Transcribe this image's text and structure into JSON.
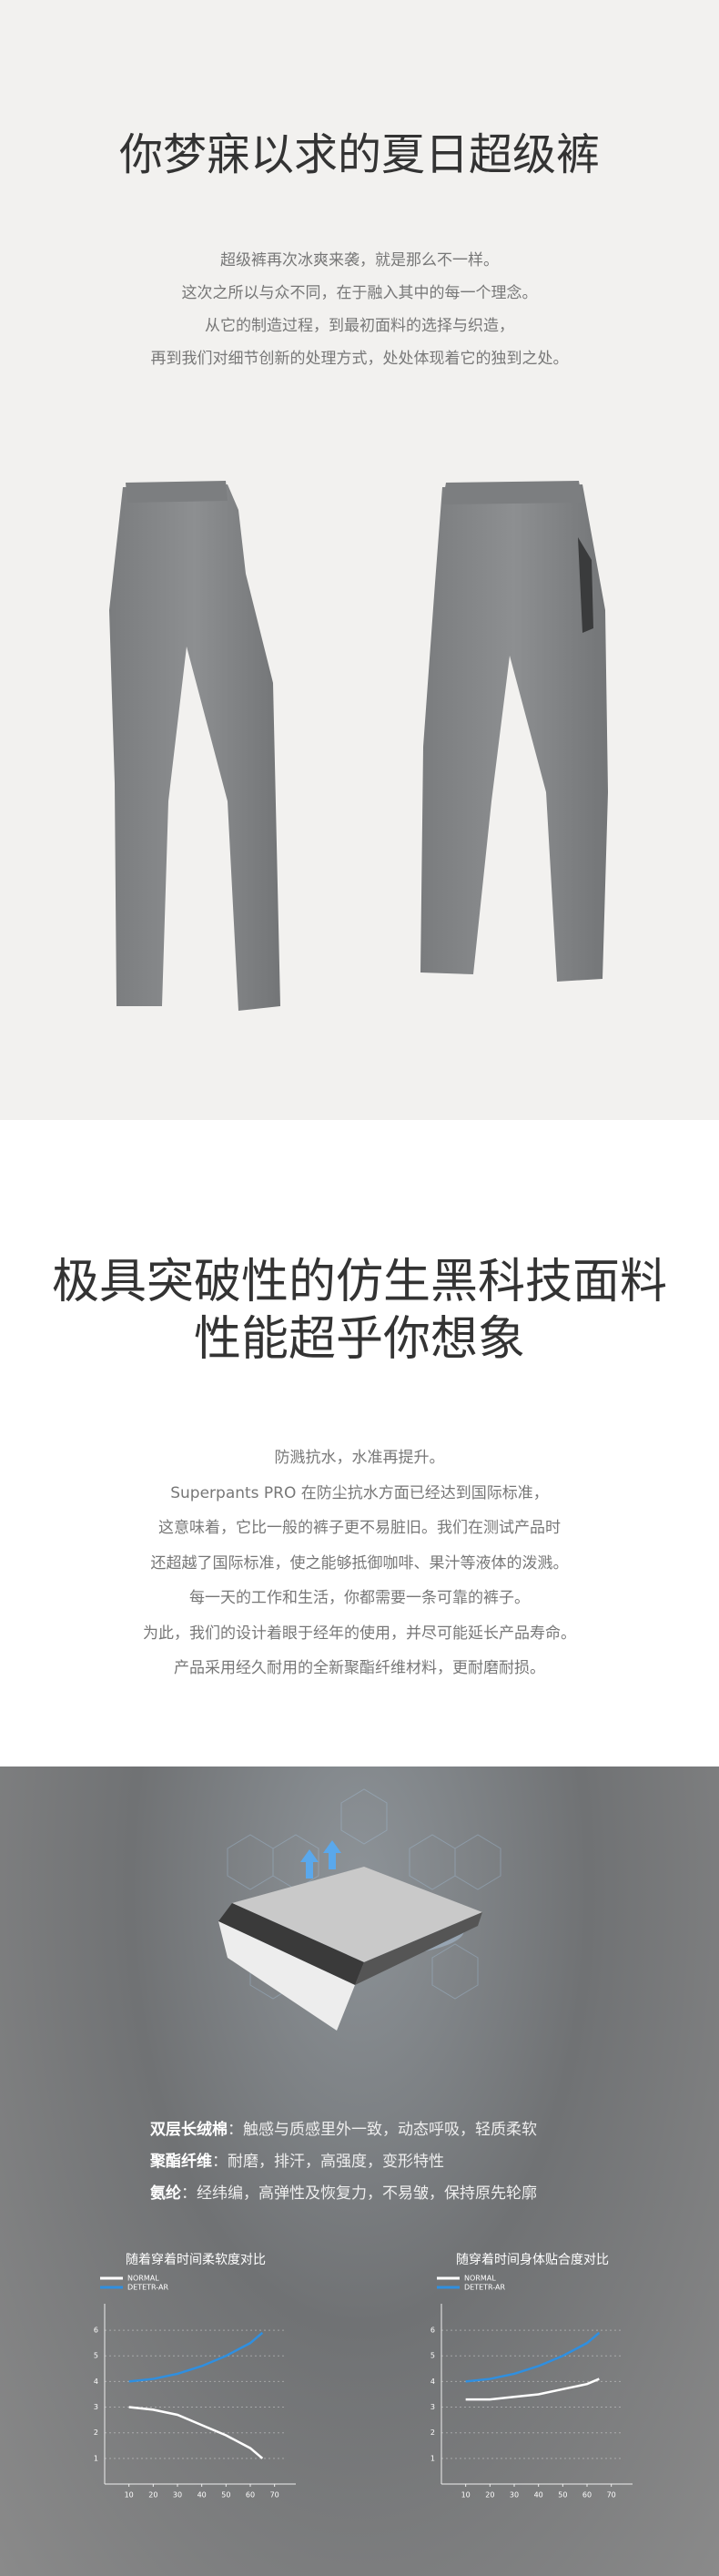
{
  "hero": {
    "title": "你梦寐以求的夏日超级裤",
    "lines": [
      "超级裤再次冰爽来袭，就是那么不一样。",
      "这次之所以与众不同，在于融入其中的每一个理念。",
      "从它的制造过程，到最初面料的选择与织造，",
      "再到我们对细节创新的处理方式，处处体现着它的独到之处。"
    ]
  },
  "fabric": {
    "title": [
      "极具突破性的仿生黑科技面料",
      "性能超乎你想象"
    ],
    "lines": [
      "防溅抗水，水准再提升。",
      "Superpants PRO 在防尘抗水方面已经达到国际标准，",
      "这意味着，它比一般的裤子更不易脏旧。我们在测试产品时",
      "还超越了国际标准，使之能够抵御咖啡、果汁等液体的泼溅。",
      "每一天的工作和生活，你都需要一条可靠的裤子。",
      "为此，我们的设计着眼于经年的使用，并尽可能延长产品寿命。",
      "产品采用经久耐用的全新聚酯纤维材料，更耐磨耐损。"
    ]
  },
  "features": [
    {
      "name": "双层长绒棉",
      "text": "：触感与质感里外一致，动态呼吸，轻质柔软"
    },
    {
      "name": "聚酯纤维",
      "text": "：耐磨，排汗，高强度，变形特性"
    },
    {
      "name": "氨纶",
      "text": "：经纬编，高弹性及恢复力，不易皱，保持原先轮廓"
    }
  ],
  "chart_data": [
    {
      "type": "line",
      "title": "随着穿着时间柔软度对比",
      "x": [
        10,
        20,
        30,
        40,
        50,
        60,
        65
      ],
      "series": [
        {
          "name": "NORMAL",
          "color": "#ffffff",
          "values": [
            3.0,
            2.9,
            2.7,
            2.3,
            1.9,
            1.4,
            1.0
          ]
        },
        {
          "name": "DETETR-AR",
          "color": "#2f8fe0",
          "values": [
            4.0,
            4.1,
            4.3,
            4.6,
            5.0,
            5.5,
            5.9
          ]
        }
      ],
      "xlim": [
        0,
        75
      ],
      "ylim": [
        0,
        6.5
      ],
      "xticks": [
        10,
        20,
        30,
        40,
        50,
        60,
        70
      ],
      "yticks": [
        1,
        2,
        3,
        4,
        5,
        6
      ]
    },
    {
      "type": "line",
      "title": "随穿着时间身体贴合度对比",
      "x": [
        10,
        20,
        30,
        40,
        50,
        60,
        65
      ],
      "series": [
        {
          "name": "NORMAL",
          "color": "#ffffff",
          "values": [
            3.3,
            3.3,
            3.4,
            3.5,
            3.7,
            3.9,
            4.1
          ]
        },
        {
          "name": "DETETR-AR",
          "color": "#2f8fe0",
          "values": [
            4.0,
            4.1,
            4.3,
            4.6,
            5.0,
            5.5,
            5.9
          ]
        }
      ],
      "xlim": [
        0,
        75
      ],
      "ylim": [
        0,
        6.5
      ],
      "xticks": [
        10,
        20,
        30,
        40,
        50,
        60,
        70
      ],
      "yticks": [
        1,
        2,
        3,
        4,
        5,
        6
      ]
    }
  ]
}
